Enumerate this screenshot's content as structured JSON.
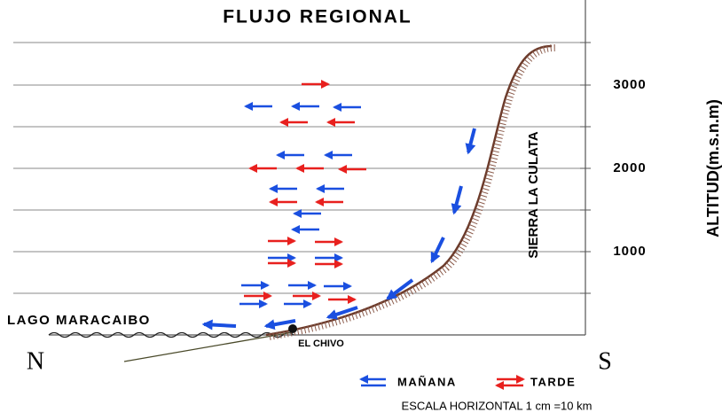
{
  "title": "FLUJO REGIONAL",
  "altitude_axis": {
    "label": "ALTITUD(m.s.n.m)",
    "ticks": [
      1000,
      2000,
      3000
    ]
  },
  "labels": {
    "mountain": "SIERRA LA CULATA",
    "lake": "LAGO MARACAIBO",
    "town": "EL CHIVO",
    "north": "N",
    "south": "S"
  },
  "legend": [
    "MAÑANA",
    "TARDE"
  ],
  "scale_note": "ESCALA HORIZONTAL 1 cm =10  km"
}
